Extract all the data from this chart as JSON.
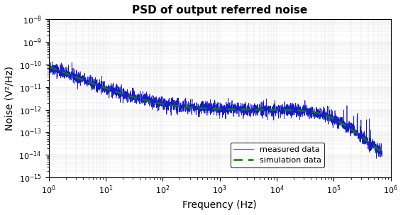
{
  "title": "PSD of output referred noise",
  "xlabel": "Frequency (Hz)",
  "ylabel": "Noise (V²/Hz)",
  "xlim": [
    1,
    1000000.0
  ],
  "ylim": [
    1e-15,
    1e-08
  ],
  "background_color": "#ffffff",
  "measured_color": "#0000cc",
  "simulation_color": "#008000",
  "legend_measured": "measured data",
  "legend_simulation": "simulation data",
  "sim_freq_log": [
    -0.0,
    0.2,
    0.5,
    0.7,
    1.0,
    1.3,
    1.6,
    2.0,
    2.3,
    2.6,
    3.0,
    3.3,
    3.6,
    4.0,
    4.3,
    4.6,
    5.0,
    5.3,
    5.6,
    5.9
  ],
  "sim_noise_log": [
    -10.04,
    -10.1,
    -10.25,
    -10.4,
    -10.65,
    -10.9,
    -11.15,
    -11.5,
    -11.65,
    -11.72,
    -11.75,
    -11.75,
    -11.78,
    -11.82,
    -11.88,
    -11.95,
    -12.1,
    -12.35,
    -12.8,
    -13.5
  ]
}
